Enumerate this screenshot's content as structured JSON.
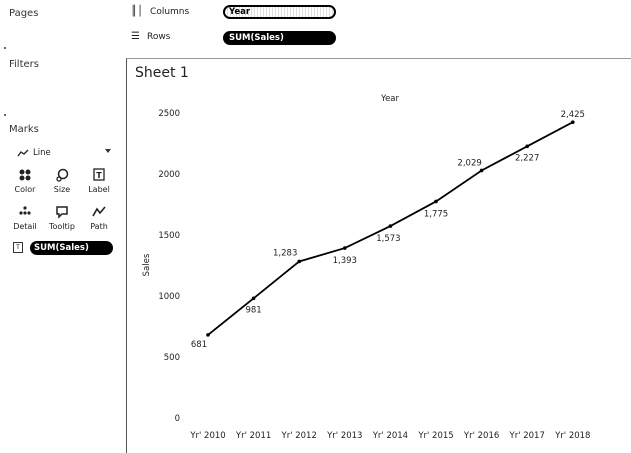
{
  "panels": {
    "pages": "Pages",
    "filters": "Filters",
    "marks": "Marks"
  },
  "marks": {
    "type": "Line",
    "cards": [
      "Color",
      "Size",
      "Label",
      "Detail",
      "Tooltip",
      "Path"
    ],
    "pill": "SUM(Sales)"
  },
  "shelves": {
    "columns_label": "Columns",
    "columns_pill": "Year",
    "rows_label": "Rows",
    "rows_pill": "SUM(Sales)"
  },
  "sheet": {
    "title": "Sheet 1"
  },
  "chart_data": {
    "type": "line",
    "title": "Year",
    "ylabel": "Sales",
    "categories": [
      "Yr' 2010",
      "Yr' 2011",
      "Yr' 2012",
      "Yr' 2013",
      "Yr' 2014",
      "Yr' 2015",
      "Yr' 2016",
      "Yr' 2017",
      "Yr' 2018"
    ],
    "values": [
      681,
      981,
      1283,
      1393,
      1573,
      1775,
      2029,
      2227,
      2425
    ],
    "labels": [
      "681",
      "981",
      "1,283",
      "1,393",
      "1,573",
      "1,775",
      "2,029",
      "2,227",
      "2,425"
    ],
    "yticks": [
      0,
      500,
      1000,
      1500,
      2000,
      2500
    ],
    "ylim": [
      0,
      2500
    ],
    "grid": false,
    "color": "#000000"
  }
}
